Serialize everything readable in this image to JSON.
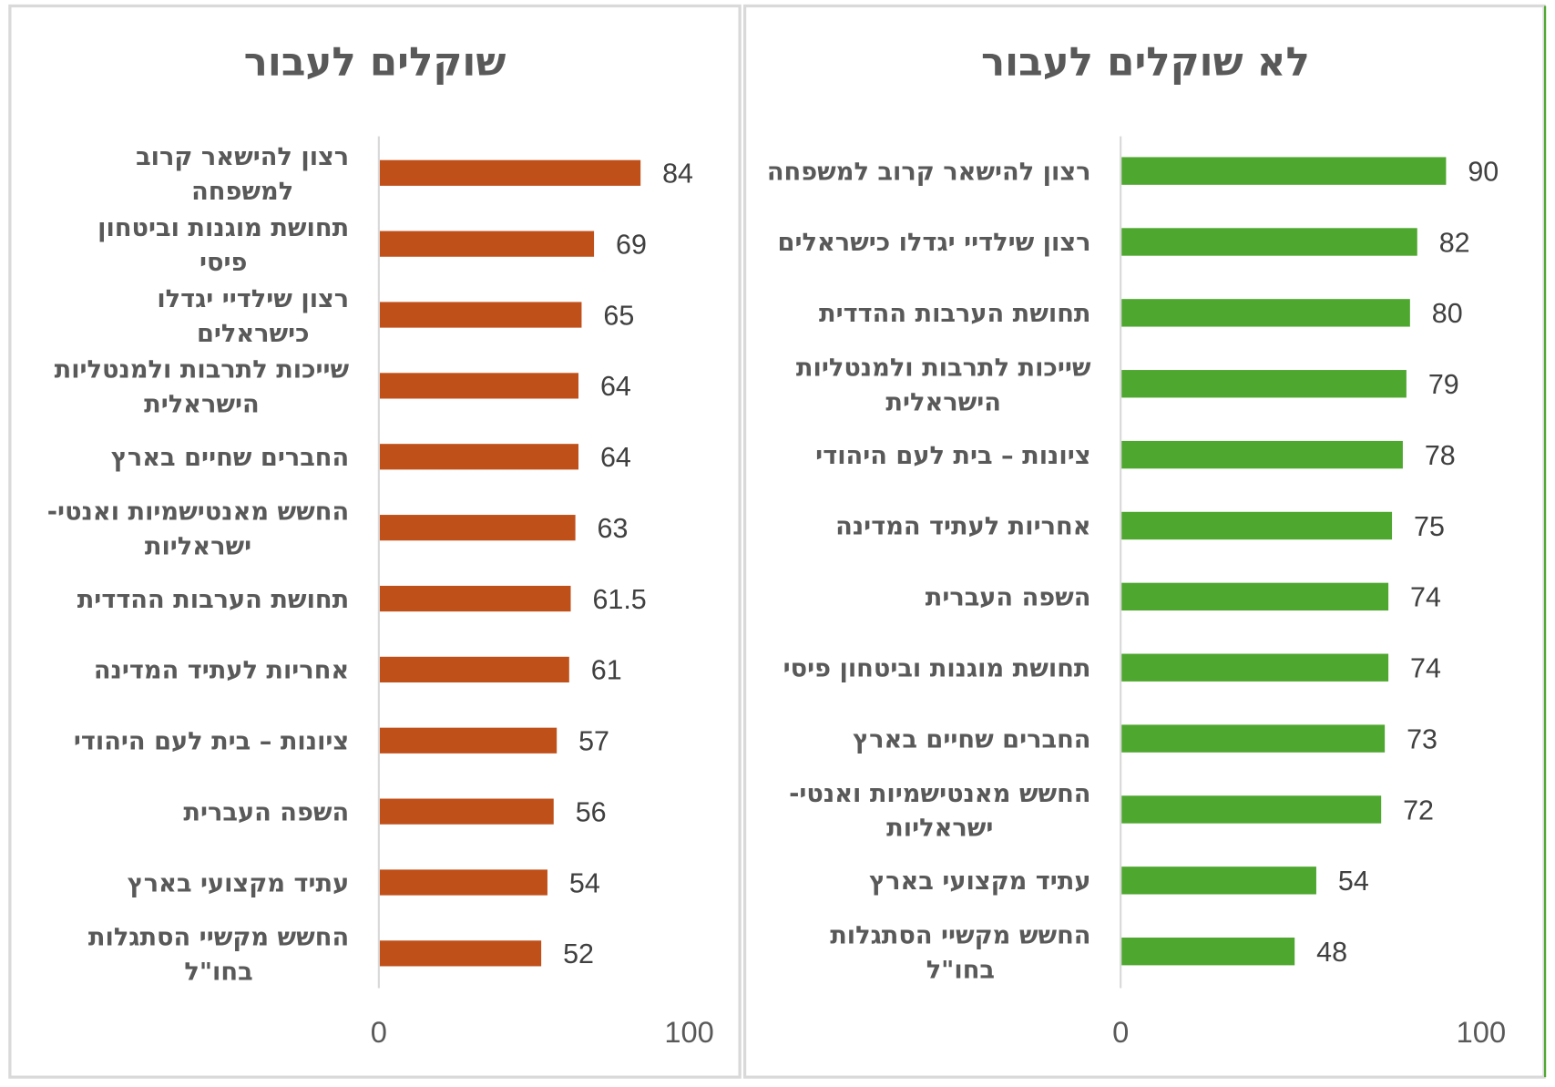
{
  "chart_data": [
    {
      "type": "bar",
      "orientation": "horizontal",
      "title": "שוקלים לעבור",
      "color": "#C0501A",
      "xlim": [
        0,
        100
      ],
      "ticks": [
        "0",
        "100"
      ],
      "grid": false,
      "categories": [
        [
          "רצון להישאר קרוב",
          "למשפחה"
        ],
        [
          "תחושת מוגנות וביטחון",
          "פיסי"
        ],
        [
          "רצון שילדיי יגדלו",
          "כישראלים"
        ],
        [
          "שייכות לתרבות ולמנטליות",
          "הישראלית"
        ],
        [
          "החברים שחיים בארץ"
        ],
        [
          "החשש מאנטישמיות ואנטי-",
          "ישראליות"
        ],
        [
          "תחושת הערבות ההדדית"
        ],
        [
          "אחריות לעתיד המדינה"
        ],
        [
          "ציונות – בית לעם היהודי"
        ],
        [
          "השפה העברית"
        ],
        [
          "עתיד מקצועי בארץ"
        ],
        [
          "החשש מקשיי הסתגלות",
          "בחו\"ל"
        ]
      ],
      "values": [
        84,
        69,
        65,
        64,
        64,
        63,
        61.5,
        61,
        57,
        56,
        54,
        52
      ]
    },
    {
      "type": "bar",
      "orientation": "horizontal",
      "title": "לא שוקלים לעבור",
      "color": "#4EA72E",
      "xlim": [
        0,
        100
      ],
      "ticks": [
        "0",
        "100"
      ],
      "grid": false,
      "categories": [
        [
          "רצון להישאר קרוב למשפחה"
        ],
        [
          "רצון שילדיי יגדלו כישראלים"
        ],
        [
          "תחושת הערבות ההדדית"
        ],
        [
          "שייכות לתרבות ולמנטליות",
          "הישראלית"
        ],
        [
          "ציונות – בית לעם היהודי"
        ],
        [
          "אחריות לעתיד המדינה"
        ],
        [
          "השפה העברית"
        ],
        [
          "תחושת מוגנות וביטחון פיסי"
        ],
        [
          "החברים שחיים בארץ"
        ],
        [
          "החשש מאנטישמיות ואנטי-",
          "ישראליות"
        ],
        [
          "עתיד מקצועי בארץ"
        ],
        [
          "החשש מקשיי הסתגלות",
          "בחו\"ל"
        ]
      ],
      "values": [
        90,
        82,
        80,
        79,
        78,
        75,
        74,
        74,
        73,
        72,
        54,
        48
      ]
    }
  ]
}
